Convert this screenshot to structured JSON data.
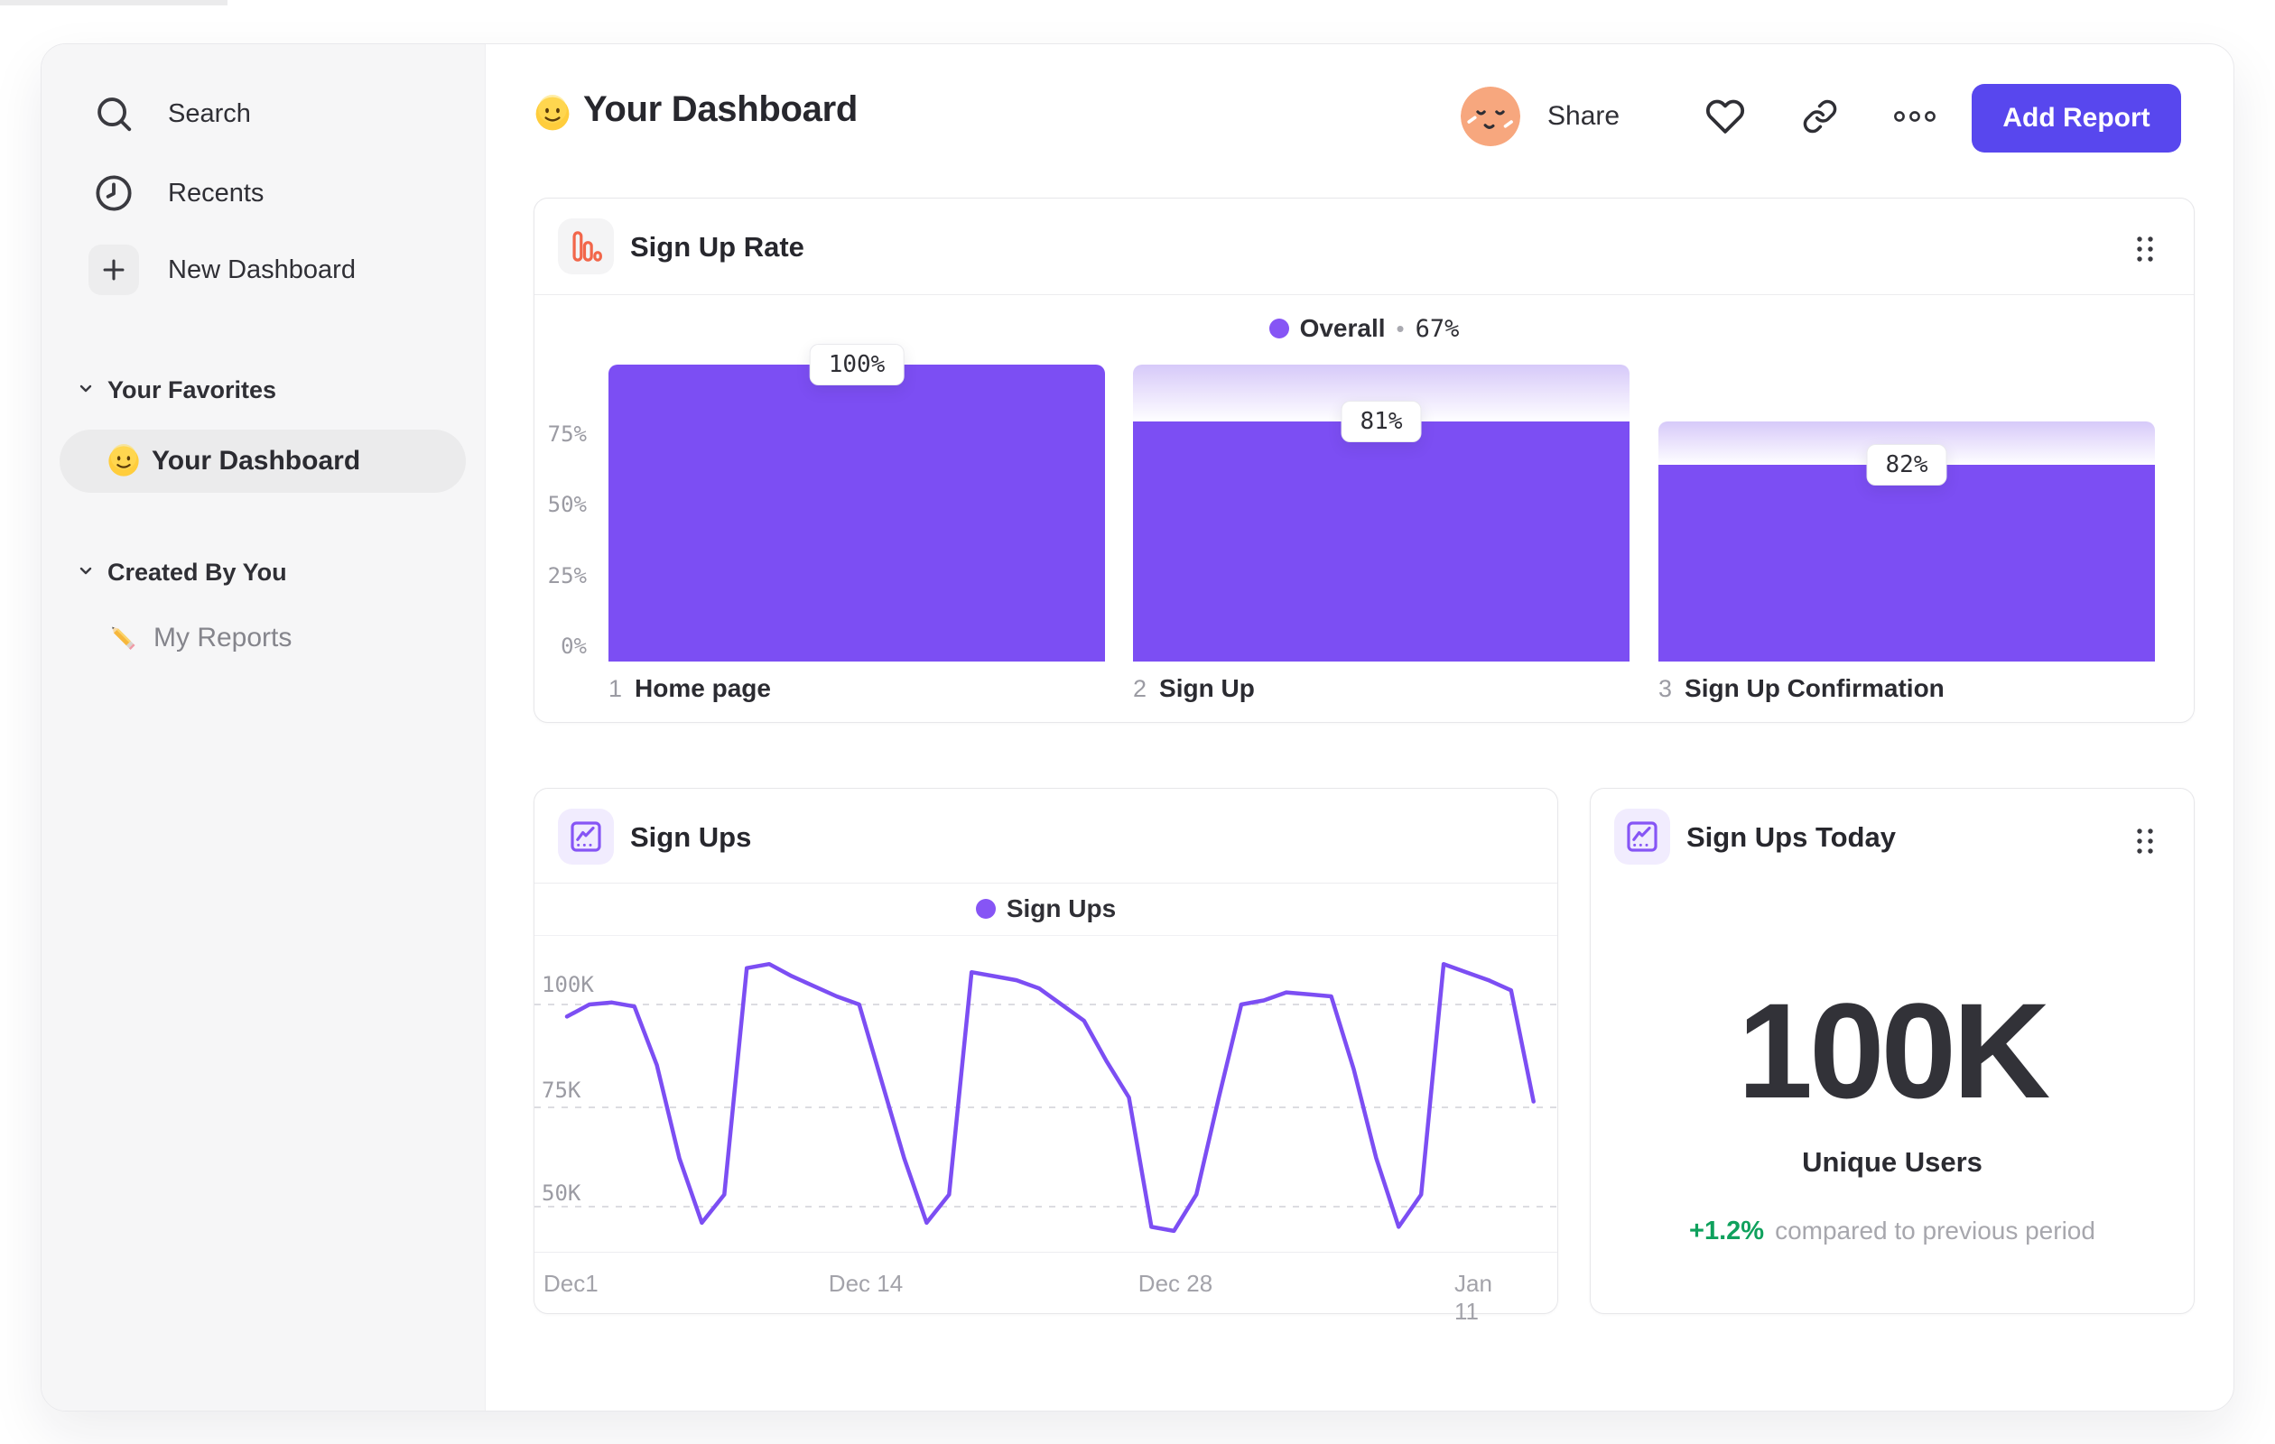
{
  "colors": {
    "accent_purple": "#7C4EF3",
    "button_purple": "#5847EE",
    "legend_purple": "#8655F5",
    "green": "#0FA15D",
    "orange": "#F2664A"
  },
  "sidebar": {
    "nav_items": [
      {
        "label": "Search",
        "icon": "search-icon"
      },
      {
        "label": "Recents",
        "icon": "clock-icon"
      },
      {
        "label": "New Dashboard",
        "icon": "plus-icon"
      }
    ],
    "sections": [
      {
        "label": "Your Favorites",
        "items": [
          {
            "label": "Your Dashboard",
            "icon": "smiley-emoji",
            "active": true
          }
        ]
      },
      {
        "label": "Created By You",
        "items": [
          {
            "label": "My Reports",
            "icon": "pencil-emoji",
            "active": false
          }
        ]
      }
    ]
  },
  "header": {
    "title": "Your Dashboard",
    "title_emoji": "slightly-smiling-face",
    "share_label": "Share",
    "add_report_label": "Add Report"
  },
  "chart_data": [
    {
      "id": "sign-up-rate-funnel",
      "type": "bar",
      "title": "Sign Up Rate",
      "legend": {
        "label": "Overall",
        "separator": "•",
        "value": "67%",
        "position": "top-center"
      },
      "y_ticks": [
        "75%",
        "50%",
        "25%",
        "0%"
      ],
      "ylim": [
        0,
        100
      ],
      "grid": false,
      "steps": [
        {
          "index": "1",
          "category": "Home page",
          "step_conversion_label": "100%",
          "overall_pct": 100,
          "prev_overall_pct": 100
        },
        {
          "index": "2",
          "category": "Sign Up",
          "step_conversion_label": "81%",
          "overall_pct": 81,
          "prev_overall_pct": 100
        },
        {
          "index": "3",
          "category": "Sign Up Confirmation",
          "step_conversion_label": "82%",
          "overall_pct": 66.4,
          "prev_overall_pct": 81
        }
      ]
    },
    {
      "id": "sign-ups-line",
      "type": "line",
      "title": "Sign Ups",
      "legend": {
        "label": "Sign Ups",
        "position": "top-center"
      },
      "xlabel": "",
      "ylabel": "",
      "x_ticks": [
        {
          "label": "Dec1",
          "day": 0
        },
        {
          "label": "Dec 14",
          "day": 13
        },
        {
          "label": "Dec 28",
          "day": 27
        },
        {
          "label": "Jan 11",
          "day": 41
        }
      ],
      "y_ticks": [
        {
          "label": "100K",
          "value": 100000
        },
        {
          "label": "75K",
          "value": 75000
        },
        {
          "label": "50K",
          "value": 50000
        }
      ],
      "ylim_thousands": [
        38,
        114
      ],
      "grid": "dashed-horizontal",
      "series": [
        {
          "name": "Sign Ups",
          "unit": "thousands",
          "values_k": [
            97,
            100,
            100.5,
            99.5,
            85,
            62,
            46,
            53,
            109,
            110,
            107,
            104.5,
            102,
            100,
            81,
            62,
            46,
            53,
            108,
            107,
            106,
            104,
            100,
            96,
            86,
            77,
            45,
            44,
            53,
            77,
            100,
            101,
            103,
            102.5,
            102,
            84,
            62,
            45,
            53,
            110,
            108,
            106,
            103.5,
            76
          ]
        }
      ]
    },
    {
      "id": "sign-ups-today-metric",
      "type": "metric",
      "title": "Sign Ups Today",
      "value": "100K",
      "label": "Unique Users",
      "delta": "+1.2%",
      "delta_note": "compared to previous period",
      "delta_direction": "up"
    }
  ]
}
